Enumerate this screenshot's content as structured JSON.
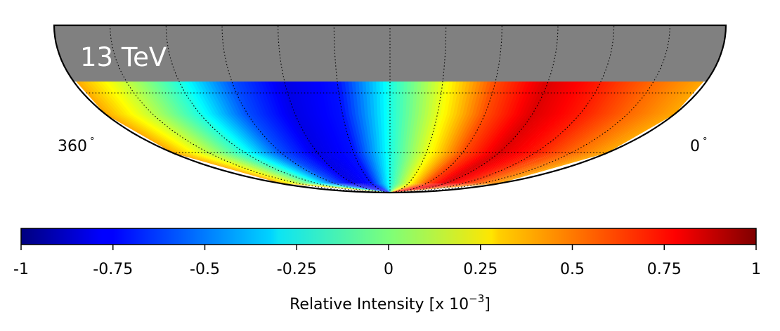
{
  "chart_data": {
    "type": "heatmap",
    "projection": "mollweide",
    "title": "",
    "energy_label": "13 TeV",
    "lon_labels": {
      "left": "360",
      "right": "0",
      "unit": "°"
    },
    "lon_range": [
      360,
      0
    ],
    "grid": true,
    "masked_region_color": "#808080",
    "colormap": "jet",
    "intensity_profile": {
      "description_free": true,
      "lon_deg": [
        0,
        30,
        60,
        90,
        120,
        150,
        180,
        210,
        240,
        270,
        300,
        330,
        360
      ],
      "values_1e-3": [
        0.42,
        0.55,
        0.7,
        0.82,
        0.6,
        0.2,
        -0.2,
        -0.72,
        -0.8,
        -0.6,
        -0.2,
        0.12,
        0.42
      ]
    },
    "colorbar": {
      "range": [
        -1,
        1
      ],
      "ticks": [
        "-1",
        "-0.75",
        "-0.5",
        "-0.25",
        "0",
        "0.25",
        "0.5",
        "0.75",
        "1"
      ],
      "tick_values": [
        -1,
        -0.75,
        -0.5,
        -0.25,
        0,
        0.25,
        0.5,
        0.75,
        1
      ],
      "label_main": "Relative Intensity [x 10",
      "label_exp": "−3",
      "label_tail": "]"
    }
  }
}
